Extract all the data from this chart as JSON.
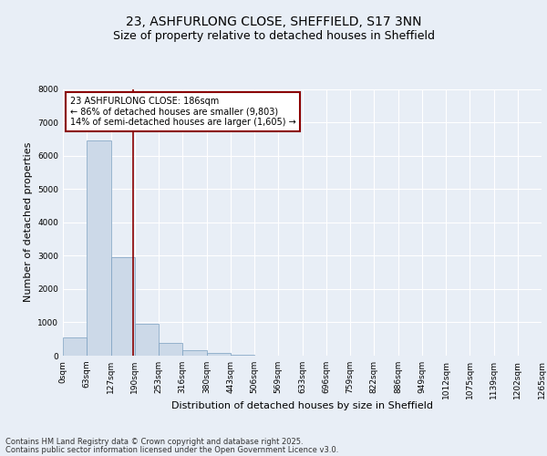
{
  "title": "23, ASHFURLONG CLOSE, SHEFFIELD, S17 3NN",
  "subtitle": "Size of property relative to detached houses in Sheffield",
  "xlabel": "Distribution of detached houses by size in Sheffield",
  "ylabel": "Number of detached properties",
  "bar_color": "#ccd9e8",
  "bar_edge_color": "#7a9fc0",
  "vline_value": 186,
  "vline_color": "#8b0000",
  "annotation_text": "23 ASHFURLONG CLOSE: 186sqm\n← 86% of detached houses are smaller (9,803)\n14% of semi-detached houses are larger (1,605) →",
  "annotation_box_color": "#ffffff",
  "annotation_box_edge": "#8b0000",
  "bin_edges": [
    0,
    63,
    127,
    190,
    253,
    316,
    380,
    443,
    506,
    569,
    633,
    696,
    759,
    822,
    886,
    949,
    1012,
    1075,
    1139,
    1202,
    1265
  ],
  "bar_values": [
    550,
    6450,
    2950,
    950,
    370,
    160,
    80,
    30,
    10,
    5,
    3,
    2,
    1,
    1,
    1,
    0,
    0,
    0,
    0,
    0
  ],
  "ylim": [
    0,
    8000
  ],
  "yticks": [
    0,
    1000,
    2000,
    3000,
    4000,
    5000,
    6000,
    7000,
    8000
  ],
  "background_color": "#e8eef6",
  "plot_bg_color": "#e8eef6",
  "grid_color": "#ffffff",
  "footer_line1": "Contains HM Land Registry data © Crown copyright and database right 2025.",
  "footer_line2": "Contains public sector information licensed under the Open Government Licence v3.0.",
  "title_fontsize": 10,
  "subtitle_fontsize": 9,
  "label_fontsize": 8,
  "tick_fontsize": 6.5,
  "footer_fontsize": 6,
  "annot_fontsize": 7
}
